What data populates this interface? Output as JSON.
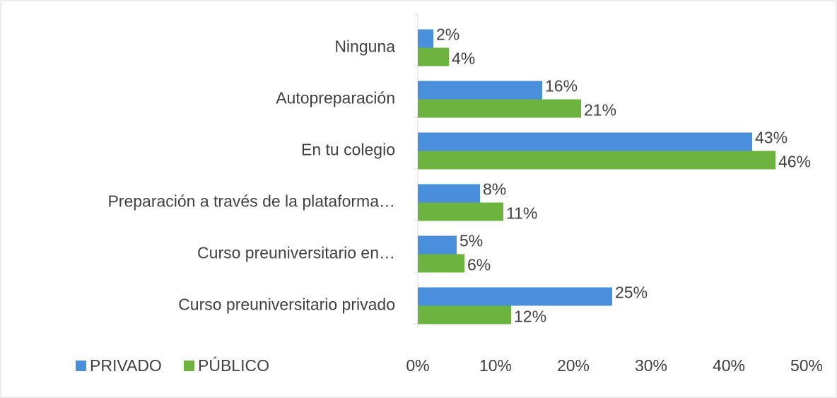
{
  "chart_data": {
    "type": "bar",
    "orientation": "horizontal",
    "categories": [
      "Ninguna",
      "Autopreparación",
      "En tu colegio",
      "Preparación a través de la plataforma…",
      "Curso preuniversitario en…",
      "Curso preuniversitario privado"
    ],
    "series": [
      {
        "name": "PRIVADO",
        "color": "#4a8fdc",
        "values": [
          2,
          16,
          43,
          8,
          5,
          25
        ],
        "value_labels": [
          "2%",
          "16%",
          "43%",
          "8%",
          "5%",
          "25%"
        ]
      },
      {
        "name": "PÚBLICO",
        "color": "#6cb33f",
        "values": [
          4,
          21,
          46,
          11,
          6,
          12
        ],
        "value_labels": [
          "4%",
          "21%",
          "46%",
          "11%",
          "6%",
          "12%"
        ]
      }
    ],
    "xlim": [
      0,
      50
    ],
    "xticks": [
      {
        "value": 0,
        "label": "0%"
      },
      {
        "value": 10,
        "label": "10%"
      },
      {
        "value": 20,
        "label": "20%"
      },
      {
        "value": 30,
        "label": "30%"
      },
      {
        "value": 40,
        "label": "40%"
      },
      {
        "value": 50,
        "label": "50%"
      }
    ],
    "legend": "bottom-left",
    "grid": false
  }
}
